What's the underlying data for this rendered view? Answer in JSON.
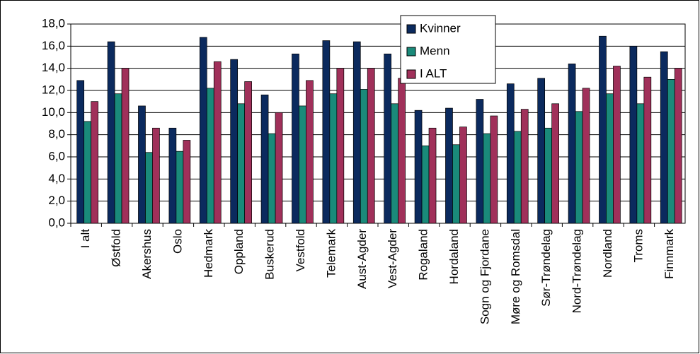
{
  "chart_data": {
    "type": "bar",
    "categories": [
      "I alt",
      "Østfold",
      "Akershus",
      "Oslo",
      "Hedmark",
      "Oppland",
      "Buskerud",
      "Vestfold",
      "Telemark",
      "Aust-Agder",
      "Vest-Agder",
      "Rogaland",
      "Hordaland",
      "Sogn og Fjordane",
      "Møre og Romsdal",
      "Sør-Trøndelag",
      "Nord-Trøndelag",
      "Nordland",
      "Troms",
      "Finnmark"
    ],
    "series": [
      {
        "name": "Kvinner",
        "color": "#0b2a5e",
        "values": [
          12.9,
          16.4,
          10.6,
          8.6,
          16.8,
          14.8,
          11.6,
          15.3,
          16.5,
          16.4,
          15.3,
          10.2,
          10.4,
          11.2,
          12.6,
          13.1,
          14.4,
          16.9,
          16.0,
          15.5
        ]
      },
      {
        "name": "Menn",
        "color": "#1a8a7a",
        "values": [
          9.2,
          11.7,
          6.4,
          6.5,
          12.2,
          10.8,
          8.1,
          10.6,
          11.7,
          12.1,
          10.8,
          7.0,
          7.1,
          8.1,
          8.3,
          8.6,
          10.1,
          11.7,
          10.8,
          13.0
        ]
      },
      {
        "name": "I ALT",
        "color": "#a0305a",
        "values": [
          11.0,
          14.0,
          8.6,
          7.5,
          14.6,
          12.8,
          10.0,
          12.9,
          14.0,
          14.0,
          13.1,
          8.6,
          8.7,
          9.7,
          10.3,
          10.8,
          12.2,
          14.2,
          13.2,
          14.0
        ]
      }
    ],
    "ylim": [
      0,
      18
    ],
    "yticks": [
      {
        "value": 0,
        "label": "0,0"
      },
      {
        "value": 2,
        "label": "2,0"
      },
      {
        "value": 4,
        "label": "4,0"
      },
      {
        "value": 6,
        "label": "6,0"
      },
      {
        "value": 8,
        "label": "8,0"
      },
      {
        "value": 10,
        "label": "10,0"
      },
      {
        "value": 12,
        "label": "12,0"
      },
      {
        "value": 14,
        "label": "14,0"
      },
      {
        "value": 16,
        "label": "16,0"
      },
      {
        "value": 18,
        "label": "18,0"
      }
    ],
    "grid": true
  }
}
